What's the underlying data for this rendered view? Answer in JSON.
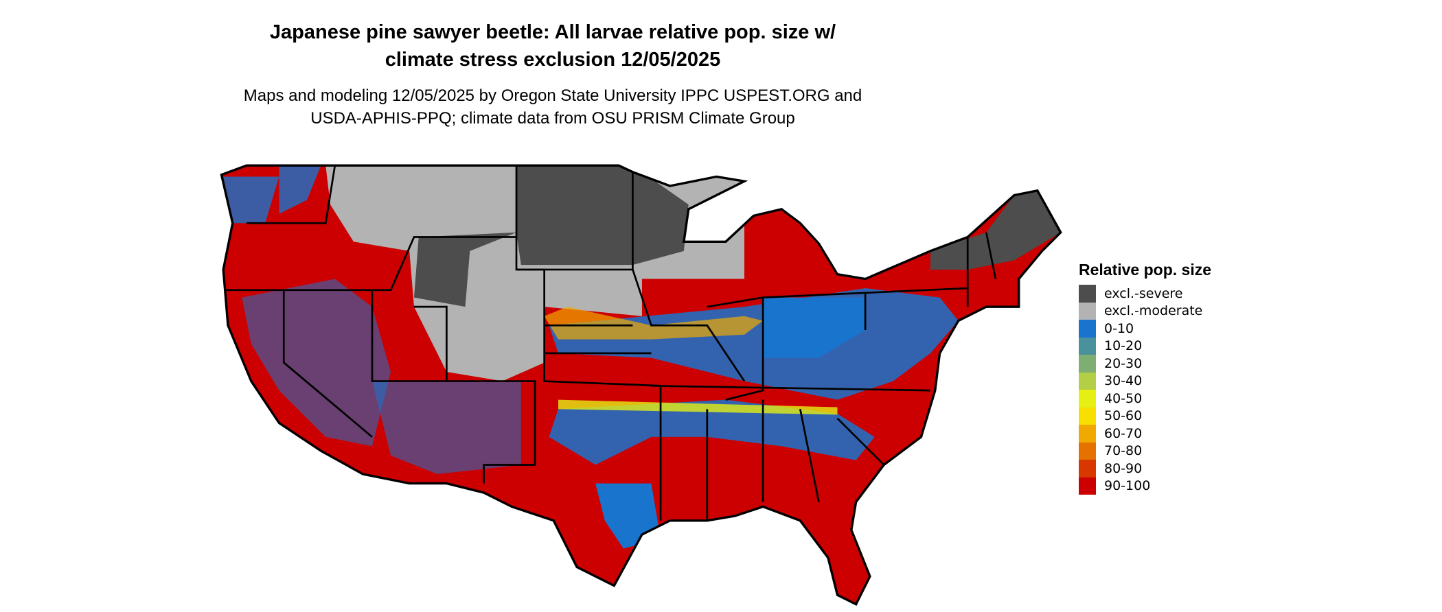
{
  "title_lines": [
    "Japanese pine sawyer beetle: All larvae relative pop. size w/",
    "climate stress exclusion 12/05/2025"
  ],
  "subtitle_lines": [
    "Maps and modeling 12/05/2025 by Oregon State University IPPC USPEST.ORG and",
    "USDA-APHIS-PPQ; climate data from OSU PRISM Climate Group"
  ],
  "legend": {
    "title": "Relative pop. size",
    "items": [
      {
        "label": "excl.-severe",
        "color": "#4d4d4d"
      },
      {
        "label": "excl.-moderate",
        "color": "#b3b3b3"
      },
      {
        "label": "0-10",
        "color": "#1874cd"
      },
      {
        "label": "10-20",
        "color": "#4a919e"
      },
      {
        "label": "20-30",
        "color": "#7eae72"
      },
      {
        "label": "30-40",
        "color": "#b2cf46"
      },
      {
        "label": "40-50",
        "color": "#e5ef14"
      },
      {
        "label": "50-60",
        "color": "#f8df00"
      },
      {
        "label": "60-70",
        "color": "#f0a900"
      },
      {
        "label": "70-80",
        "color": "#e57200"
      },
      {
        "label": "80-90",
        "color": "#d83800"
      },
      {
        "label": "90-100",
        "color": "#cc0000"
      }
    ]
  },
  "map": {
    "region": "Contiguous United States",
    "boundaries": "state borders"
  }
}
